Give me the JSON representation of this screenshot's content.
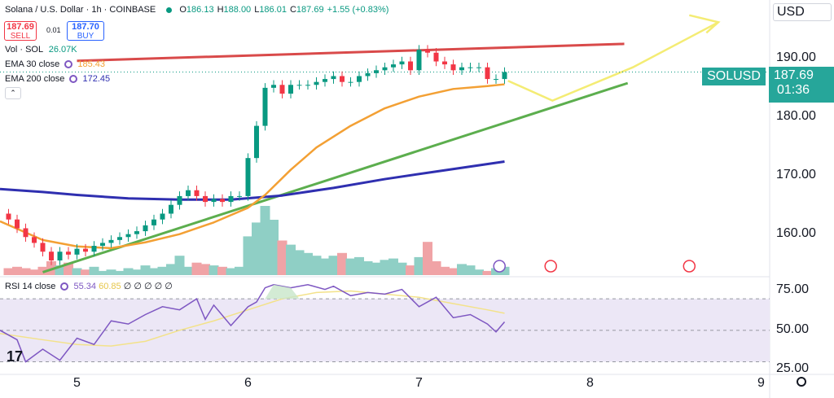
{
  "header": {
    "symbol_title": "Solana / U.S. Dollar · 1h · COINBASE",
    "ohlc": [
      {
        "k": "O",
        "v": "186.13"
      },
      {
        "k": "H",
        "v": "188.00"
      },
      {
        "k": "L",
        "v": "186.01"
      },
      {
        "k": "C",
        "v": "187.69"
      },
      {
        "k": "",
        "v": "+1.55 (+0.83%)"
      }
    ],
    "sell_price": "187.69",
    "sell_label": "SELL",
    "spread": "0.01",
    "buy_price": "187.70",
    "buy_label": "BUY",
    "vol_label": "Vol · SOL",
    "vol_value": "26.07K",
    "ema30_label": "EMA 30 close",
    "ema30_value": "185.43",
    "ema200_label": "EMA 200 close",
    "ema200_value": "172.45",
    "rsi_label": "RSI 14 close",
    "rsi_value": "55.34",
    "rsi_ma_value": "60.85",
    "rsi_extra": "∅ ∅ ∅ ∅ ∅",
    "currency": "USD",
    "symbol_tag": "SOLUSD",
    "last_price": "187.69",
    "countdown": "01:36",
    "tv_logo": "17"
  },
  "colors": {
    "up": "#089981",
    "down": "#f23645",
    "vol_up": "#8fcfc5",
    "vol_down": "#f0a3a6",
    "ema30": "#f3a034",
    "ema200": "#2f2fb0",
    "trend_red": "#d94a4a",
    "trend_green": "#5cae4e",
    "projection": "#f4ec74",
    "rsi_line": "#7e57c2",
    "rsi_ma": "#f3e28a",
    "rsi_band": "#ece7f6",
    "overbought_fill": "#c8e6c9"
  },
  "icons": [
    "lightning-event-icon",
    "us-flag-event-icon",
    "us-flag-event-icon",
    "settings-gear-icon",
    "collapse-chevron-icon"
  ],
  "chart_data": [
    {
      "type": "candlestick",
      "title": "Solana / U.S. Dollar · 1h · COINBASE",
      "x_ticks": [
        "5",
        "6",
        "7",
        "8",
        "9"
      ],
      "y_ticks": [
        "160.00",
        "170.00",
        "180.00",
        "190.00"
      ],
      "ylim": [
        153,
        200
      ],
      "xlim": [
        4.55,
        9.05
      ],
      "series": [
        {
          "name": "EMA 30 close",
          "x": [
            4.55,
            4.8,
            5.0,
            5.2,
            5.4,
            5.6,
            5.8,
            6.0,
            6.1,
            6.25,
            6.4,
            6.6,
            6.8,
            7.0,
            7.2,
            7.4,
            7.5
          ],
          "y": [
            162.2,
            159.0,
            157.9,
            157.6,
            158.6,
            160.0,
            162.0,
            164.5,
            166.7,
            171.0,
            174.8,
            178.5,
            181.5,
            183.5,
            184.8,
            185.3,
            185.6
          ]
        },
        {
          "name": "EMA 200 close",
          "x": [
            4.55,
            4.8,
            5.0,
            5.3,
            5.6,
            5.9,
            6.2,
            6.5,
            6.8,
            7.1,
            7.5
          ],
          "y": [
            167.7,
            167.2,
            166.7,
            166.1,
            165.9,
            165.9,
            166.6,
            167.9,
            169.4,
            170.7,
            172.4
          ]
        },
        {
          "name": "candles",
          "x": [
            4.6,
            4.65,
            4.7,
            4.75,
            4.8,
            4.85,
            4.9,
            4.95,
            5.0,
            5.05,
            5.1,
            5.15,
            5.2,
            5.25,
            5.3,
            5.35,
            5.4,
            5.45,
            5.5,
            5.55,
            5.6,
            5.65,
            5.7,
            5.75,
            5.8,
            5.85,
            5.9,
            5.95,
            6.0,
            6.05,
            6.1,
            6.15,
            6.2,
            6.25,
            6.3,
            6.35,
            6.4,
            6.45,
            6.5,
            6.55,
            6.6,
            6.65,
            6.7,
            6.75,
            6.8,
            6.85,
            6.9,
            6.95,
            7.0,
            7.05,
            7.1,
            7.15,
            7.2,
            7.25,
            7.3,
            7.35,
            7.4,
            7.45,
            7.5
          ],
          "open": [
            163.5,
            162.5,
            161.0,
            159.5,
            158.5,
            157.0,
            155.5,
            157.0,
            156.5,
            157.5,
            157.0,
            158.0,
            158.5,
            159.0,
            159.5,
            160.0,
            160.5,
            161.5,
            162.5,
            163.5,
            165.0,
            166.5,
            167.5,
            166.5,
            165.5,
            166.0,
            165.5,
            166.5,
            166.5,
            173.0,
            178.5,
            185.0,
            185.5,
            184.0,
            185.5,
            185.5,
            185.5,
            186.0,
            186.5,
            187.0,
            186.0,
            186.0,
            187.0,
            187.5,
            188.0,
            188.5,
            189.0,
            189.5,
            188.0,
            191.5,
            191.0,
            189.5,
            189.0,
            188.0,
            188.5,
            188.5,
            188.5,
            186.5,
            186.5
          ],
          "close": [
            162.5,
            161.0,
            159.5,
            158.5,
            157.0,
            155.5,
            157.0,
            156.5,
            157.5,
            157.0,
            158.0,
            158.5,
            159.0,
            159.5,
            160.0,
            160.5,
            161.5,
            162.5,
            163.5,
            165.0,
            166.5,
            167.5,
            166.5,
            165.5,
            166.0,
            165.5,
            166.5,
            166.5,
            173.0,
            178.5,
            185.0,
            185.5,
            184.0,
            185.5,
            185.5,
            185.5,
            186.0,
            186.5,
            187.0,
            186.0,
            186.0,
            187.0,
            187.5,
            188.0,
            188.5,
            189.0,
            189.5,
            188.0,
            191.5,
            191.0,
            189.5,
            189.0,
            188.0,
            188.5,
            188.5,
            188.5,
            186.5,
            186.5,
            187.69
          ]
        },
        {
          "name": "Vol · SOL",
          "x_range": [
            4.55,
            7.5
          ],
          "values": [
            5,
            6,
            5,
            4,
            6,
            10,
            7,
            9,
            5,
            4,
            6,
            3,
            4,
            3,
            5,
            4,
            7,
            5,
            6,
            8,
            14,
            6,
            9,
            8,
            7,
            6,
            5,
            6,
            28,
            38,
            50,
            40,
            25,
            22,
            18,
            16,
            14,
            12,
            14,
            16,
            12,
            13,
            10,
            9,
            11,
            12,
            9,
            7,
            13,
            24,
            10,
            6,
            5,
            8,
            7,
            4,
            3,
            5,
            6
          ]
        }
      ]
    },
    {
      "type": "line",
      "title": "RSI 14 close",
      "y_ticks": [
        "25.00",
        "50.00",
        "75.00"
      ],
      "ylim": [
        22,
        83
      ],
      "series": [
        {
          "name": "RSI 14 close",
          "x": [
            4.55,
            4.65,
            4.7,
            4.8,
            4.9,
            5.0,
            5.1,
            5.2,
            5.3,
            5.4,
            5.5,
            5.6,
            5.7,
            5.75,
            5.8,
            5.9,
            6.0,
            6.05,
            6.1,
            6.15,
            6.25,
            6.35,
            6.45,
            6.5,
            6.6,
            6.7,
            6.8,
            6.9,
            7.0,
            7.1,
            7.2,
            7.3,
            7.4,
            7.45,
            7.5
          ],
          "y": [
            50,
            44,
            30,
            38,
            31,
            45,
            41,
            56,
            54,
            60,
            65,
            63,
            70,
            57,
            66,
            53,
            65,
            68,
            77,
            79,
            77,
            79,
            76,
            78,
            72,
            74,
            73,
            76,
            65,
            71,
            58,
            60,
            54,
            49,
            55.34
          ]
        },
        {
          "name": "RSI MA",
          "x": [
            4.55,
            4.8,
            5.0,
            5.2,
            5.4,
            5.6,
            5.8,
            6.0,
            6.2,
            6.4,
            6.6,
            6.8,
            7.0,
            7.2,
            7.4,
            7.5
          ],
          "y": [
            48,
            44,
            41,
            40,
            43,
            50,
            56,
            63,
            70,
            74,
            75,
            73,
            71,
            67,
            63,
            60.85
          ]
        }
      ]
    }
  ]
}
